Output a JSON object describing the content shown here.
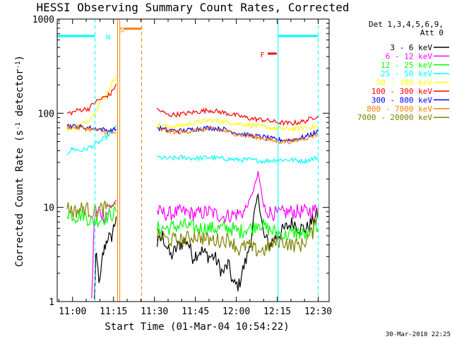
{
  "chart_data": {
    "type": "line",
    "title": "HESSI Observing Summary Count Rates, Corrected",
    "xlabel": "Start Time (01-Mar-04 10:54:22)",
    "ylabel_parts": [
      "Corrected Count Rate (s",
      "-1",
      " detector",
      "-1",
      ")"
    ],
    "footer": "30-Mar-2010 22:25",
    "legend_header": [
      "Det 1,3,4,5,6,9,",
      "Att 0"
    ],
    "y_scale": "log",
    "xlim_min": [
      54.37,
      154
    ],
    "ylim": [
      1,
      1000
    ],
    "x_ticks": [
      {
        "min": 60,
        "label": "11:00"
      },
      {
        "min": 75,
        "label": "11:15"
      },
      {
        "min": 90,
        "label": "11:30"
      },
      {
        "min": 105,
        "label": "11:45"
      },
      {
        "min": 120,
        "label": "12:00"
      },
      {
        "min": 135,
        "label": "12:15"
      },
      {
        "min": 150,
        "label": "12:30"
      }
    ],
    "y_ticks": [
      {
        "value": 1,
        "label": "1"
      },
      {
        "value": 10,
        "label": "10"
      },
      {
        "value": 100,
        "label": "100"
      },
      {
        "value": 1000,
        "label": "1000"
      }
    ],
    "series": [
      {
        "name": "3 - 6 keV",
        "color": "#000000",
        "segments": [
          [
            [
              68,
              1
            ],
            [
              68.5,
              3
            ],
            [
              69,
              2.5
            ],
            [
              70,
              1.5
            ],
            [
              71,
              3
            ],
            [
              72,
              4
            ],
            [
              73,
              5
            ],
            [
              74,
              4.5
            ],
            [
              75,
              6
            ],
            [
              76,
              8
            ]
          ],
          [
            [
              91,
              4
            ],
            [
              93,
              5
            ],
            [
              96,
              3
            ],
            [
              99,
              4
            ],
            [
              102,
              4.5
            ],
            [
              104,
              3
            ],
            [
              107,
              3.5
            ],
            [
              110,
              3
            ],
            [
              112,
              3
            ],
            [
              115,
              2
            ],
            [
              117,
              2.5
            ],
            [
              119,
              1.5
            ],
            [
              121,
              1.5
            ],
            [
              122,
              2
            ],
            [
              124,
              3
            ],
            [
              126,
              6
            ],
            [
              127,
              10
            ],
            [
              128,
              14
            ],
            [
              129,
              8
            ],
            [
              130,
              5
            ],
            [
              132,
              4
            ],
            [
              135,
              5
            ],
            [
              138,
              6
            ],
            [
              141,
              7
            ],
            [
              143,
              6
            ],
            [
              146,
              6
            ],
            [
              149,
              8
            ],
            [
              150,
              9
            ]
          ]
        ]
      },
      {
        "name": "6 - 12 keV",
        "color": "#ff00ff",
        "segments": [
          [
            [
              67,
              1
            ],
            [
              68,
              8
            ],
            [
              70,
              9
            ],
            [
              72,
              8
            ],
            [
              74,
              10
            ],
            [
              76,
              12
            ]
          ],
          [
            [
              91,
              9
            ],
            [
              95,
              8.5
            ],
            [
              100,
              9
            ],
            [
              105,
              8.5
            ],
            [
              110,
              9
            ],
            [
              115,
              8
            ],
            [
              120,
              8.5
            ],
            [
              123,
              9
            ],
            [
              125,
              12
            ],
            [
              127,
              18
            ],
            [
              128,
              23
            ],
            [
              129,
              16
            ],
            [
              130,
              10
            ],
            [
              132,
              9
            ],
            [
              135,
              8.5
            ],
            [
              140,
              9
            ],
            [
              145,
              9
            ],
            [
              150,
              9.5
            ]
          ]
        ]
      },
      {
        "name": "12 - 25 keV",
        "color": "#00ff00",
        "segments": [
          [
            [
              58,
              9
            ],
            [
              61,
              8
            ],
            [
              64,
              8.5
            ],
            [
              67,
              7
            ],
            [
              70,
              7.5
            ],
            [
              73,
              8
            ],
            [
              76,
              9
            ]
          ],
          [
            [
              91,
              6
            ],
            [
              95,
              6
            ],
            [
              100,
              6.5
            ],
            [
              105,
              6
            ],
            [
              110,
              6
            ],
            [
              115,
              6
            ],
            [
              118,
              6
            ],
            [
              121,
              5.5
            ],
            [
              124,
              6
            ],
            [
              126,
              6
            ],
            [
              128,
              7
            ],
            [
              131,
              6
            ],
            [
              134,
              5.5
            ],
            [
              138,
              5
            ],
            [
              142,
              5.5
            ],
            [
              146,
              5
            ],
            [
              150,
              6
            ]
          ]
        ]
      },
      {
        "name": "25 - 50 keV",
        "color": "#00ffff",
        "segments": [
          [
            [
              58,
              38
            ],
            [
              60,
              42
            ],
            [
              63,
              40
            ],
            [
              66,
              43
            ],
            [
              68,
              46
            ],
            [
              70,
              50
            ],
            [
              72,
              55
            ],
            [
              74,
              62
            ],
            [
              76,
              75
            ]
          ],
          [
            [
              91,
              34
            ],
            [
              95,
              33
            ],
            [
              100,
              34
            ],
            [
              105,
              33
            ],
            [
              110,
              34
            ],
            [
              115,
              33
            ],
            [
              120,
              32
            ],
            [
              125,
              32
            ],
            [
              130,
              31
            ],
            [
              135,
              32
            ],
            [
              140,
              32
            ],
            [
              145,
              31
            ],
            [
              150,
              34
            ]
          ]
        ]
      },
      {
        "name": "50 - 100 keV",
        "color": "#ffff00",
        "segments": [
          [
            [
              58,
              68
            ],
            [
              60,
              70
            ],
            [
              63,
              75
            ],
            [
              66,
              85
            ],
            [
              68,
              100
            ],
            [
              70,
              130
            ],
            [
              72,
              150
            ],
            [
              74,
              200
            ],
            [
              76,
              245
            ]
          ],
          [
            [
              91,
              75
            ],
            [
              95,
              72
            ],
            [
              100,
              74
            ],
            [
              105,
              80
            ],
            [
              110,
              84
            ],
            [
              115,
              82
            ],
            [
              120,
              78
            ],
            [
              125,
              75
            ],
            [
              130,
              72
            ],
            [
              135,
              68
            ],
            [
              140,
              68
            ],
            [
              145,
              70
            ],
            [
              150,
              72
            ]
          ]
        ]
      },
      {
        "name": "100 - 300 keV",
        "color": "#ff0000",
        "segments": [
          [
            [
              58,
              100
            ],
            [
              60,
              102
            ],
            [
              62,
              108
            ],
            [
              64,
              110
            ],
            [
              66,
              112
            ],
            [
              68,
              130
            ],
            [
              70,
              140
            ],
            [
              72,
              150
            ],
            [
              74,
              160
            ],
            [
              76,
              205
            ]
          ],
          [
            [
              91,
              110
            ],
            [
              95,
              96
            ],
            [
              100,
              98
            ],
            [
              105,
              103
            ],
            [
              110,
              108
            ],
            [
              115,
              102
            ],
            [
              120,
              95
            ],
            [
              125,
              88
            ],
            [
              130,
              85
            ],
            [
              135,
              80
            ],
            [
              140,
              78
            ],
            [
              145,
              82
            ],
            [
              150,
              95
            ]
          ]
        ]
      },
      {
        "name": "300 - 800 keV",
        "color": "#0000ff",
        "segments": [
          [
            [
              58,
              74
            ],
            [
              62,
              72
            ],
            [
              66,
              70
            ],
            [
              70,
              68
            ],
            [
              74,
              65
            ],
            [
              76,
              68
            ]
          ],
          [
            [
              91,
              70
            ],
            [
              95,
              66
            ],
            [
              100,
              65
            ],
            [
              105,
              68
            ],
            [
              110,
              70
            ],
            [
              115,
              68
            ],
            [
              120,
              62
            ],
            [
              125,
              58
            ],
            [
              130,
              56
            ],
            [
              135,
              52
            ],
            [
              140,
              52
            ],
            [
              145,
              56
            ],
            [
              150,
              64
            ]
          ]
        ]
      },
      {
        "name": "800 - 7000 keV",
        "color": "#ff8000",
        "segments": [
          [
            [
              58,
              72
            ],
            [
              62,
              70
            ],
            [
              66,
              68
            ],
            [
              70,
              65
            ],
            [
              74,
              62
            ],
            [
              76,
              63
            ]
          ],
          [
            [
              91,
              68
            ],
            [
              95,
              64
            ],
            [
              100,
              63
            ],
            [
              105,
              66
            ],
            [
              110,
              68
            ],
            [
              115,
              66
            ],
            [
              120,
              60
            ],
            [
              125,
              57
            ],
            [
              130,
              54
            ],
            [
              135,
              50
            ],
            [
              140,
              50
            ],
            [
              145,
              54
            ],
            [
              150,
              60
            ]
          ]
        ]
      },
      {
        "name": "7000 - 20000 keV",
        "color": "#808000",
        "segments": [
          [
            [
              58,
              10
            ],
            [
              61,
              9
            ],
            [
              64,
              10
            ],
            [
              67,
              9
            ],
            [
              70,
              9.5
            ],
            [
              73,
              10
            ],
            [
              76,
              11
            ]
          ],
          [
            [
              91,
              5
            ],
            [
              95,
              4.5
            ],
            [
              100,
              4.5
            ],
            [
              105,
              5
            ],
            [
              110,
              4.5
            ],
            [
              115,
              4.5
            ],
            [
              118,
              4.5
            ],
            [
              121,
              3.5
            ],
            [
              124,
              4
            ],
            [
              127,
              3.5
            ],
            [
              130,
              3.5
            ],
            [
              133,
              4
            ],
            [
              136,
              4.5
            ],
            [
              140,
              4
            ],
            [
              144,
              4
            ],
            [
              148,
              5.5
            ],
            [
              150,
              10
            ]
          ]
        ]
      }
    ],
    "annotations": [
      {
        "label": "N",
        "color": "#00ffff",
        "x_min": 71.5,
        "y": 650
      },
      {
        "label": "S",
        "color": "#ff8000",
        "x_min": 76.5,
        "y": 780
      },
      {
        "label": "F",
        "color": "#ff0000",
        "x_min": 128,
        "y": 420
      }
    ],
    "flags": [
      {
        "color": "#00ffff",
        "segments": [
          [
            54.4,
            68.2
          ],
          [
            135.3,
            150
          ]
        ],
        "y": 660
      },
      {
        "color": "#ff8000",
        "segments": [
          [
            78.7,
            85.3
          ]
        ],
        "y": 790
      },
      {
        "color": "#ff0000",
        "segments": [
          [
            131.5,
            134.8
          ]
        ],
        "y": 430
      }
    ],
    "vlines": [
      {
        "x_min": 68.2,
        "color": "#00ffff",
        "style": "dashed"
      },
      {
        "x_min": 150,
        "color": "#00ffff",
        "style": "dashed"
      },
      {
        "x_min": 135.3,
        "color": "#00ffff",
        "style": "solid"
      },
      {
        "x_min": 76.5,
        "color": "#ff8000",
        "style": "solid"
      },
      {
        "x_min": 77.3,
        "color": "#ff8000",
        "style": "solid"
      },
      {
        "x_min": 85.3,
        "color": "#ff8000",
        "style": "dashed"
      }
    ]
  }
}
